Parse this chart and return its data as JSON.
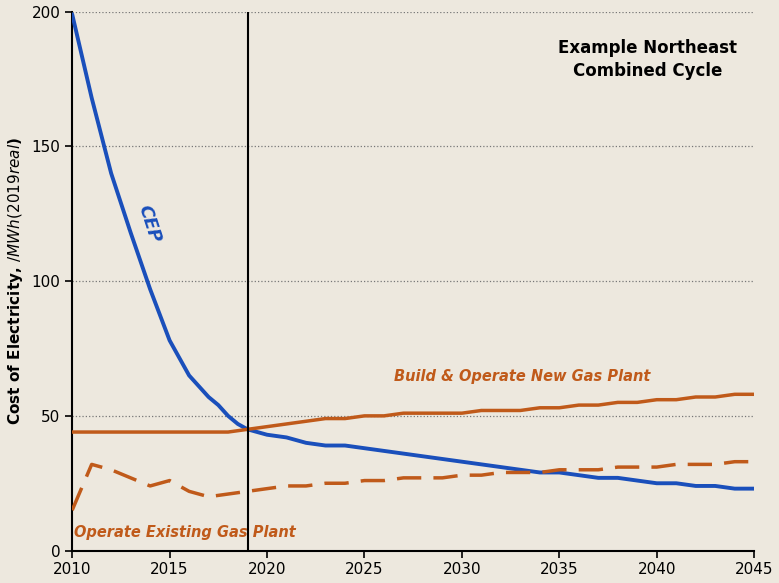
{
  "title_annotation": "Example Northeast\nCombined Cycle",
  "ylabel": "Cost of Electricity, $/MWh (2019 real $)",
  "xlim": [
    2010,
    2045
  ],
  "ylim": [
    0,
    200
  ],
  "yticks": [
    0,
    50,
    100,
    150,
    200
  ],
  "xticks": [
    2010,
    2015,
    2020,
    2025,
    2030,
    2035,
    2040,
    2045
  ],
  "background_color": "#ede8de",
  "vertical_line_x": 2019,
  "cep_label": "CEP",
  "new_gas_label": "Build & Operate New Gas Plant",
  "existing_gas_label": "Operate Existing Gas Plant",
  "cep_color": "#1a4fbb",
  "gas_color": "#c05a1a",
  "cep_x": [
    2010,
    2011,
    2012,
    2013,
    2014,
    2015,
    2016,
    2017,
    2017.5,
    2018,
    2018.5,
    2019,
    2020,
    2021,
    2022,
    2023,
    2024,
    2025,
    2026,
    2027,
    2028,
    2029,
    2030,
    2031,
    2032,
    2033,
    2034,
    2035,
    2036,
    2037,
    2038,
    2039,
    2040,
    2041,
    2042,
    2043,
    2044,
    2045
  ],
  "cep_y": [
    199,
    168,
    140,
    118,
    97,
    78,
    65,
    57,
    54,
    50,
    47,
    45,
    43,
    42,
    40,
    39,
    39,
    38,
    37,
    36,
    35,
    34,
    33,
    32,
    31,
    30,
    29,
    29,
    28,
    27,
    27,
    26,
    25,
    25,
    24,
    24,
    23,
    23
  ],
  "new_gas_x": [
    2010,
    2011,
    2012,
    2013,
    2014,
    2015,
    2016,
    2017,
    2018,
    2019,
    2020,
    2021,
    2022,
    2023,
    2024,
    2025,
    2026,
    2027,
    2028,
    2029,
    2030,
    2031,
    2032,
    2033,
    2034,
    2035,
    2036,
    2037,
    2038,
    2039,
    2040,
    2041,
    2042,
    2043,
    2044,
    2045
  ],
  "new_gas_y": [
    44,
    44,
    44,
    44,
    44,
    44,
    44,
    44,
    44,
    45,
    46,
    47,
    48,
    49,
    49,
    50,
    50,
    51,
    51,
    51,
    51,
    52,
    52,
    52,
    53,
    53,
    54,
    54,
    55,
    55,
    56,
    56,
    57,
    57,
    58,
    58
  ],
  "existing_gas_x": [
    2010,
    2011,
    2012,
    2013,
    2014,
    2015,
    2016,
    2017,
    2018,
    2019,
    2020,
    2021,
    2022,
    2023,
    2024,
    2025,
    2026,
    2027,
    2028,
    2029,
    2030,
    2031,
    2032,
    2033,
    2034,
    2035,
    2036,
    2037,
    2038,
    2039,
    2040,
    2041,
    2042,
    2043,
    2044,
    2045
  ],
  "existing_gas_y": [
    15,
    32,
    30,
    27,
    24,
    26,
    22,
    20,
    21,
    22,
    23,
    24,
    24,
    25,
    25,
    26,
    26,
    27,
    27,
    27,
    28,
    28,
    29,
    29,
    29,
    30,
    30,
    30,
    31,
    31,
    31,
    32,
    32,
    32,
    33,
    33
  ]
}
